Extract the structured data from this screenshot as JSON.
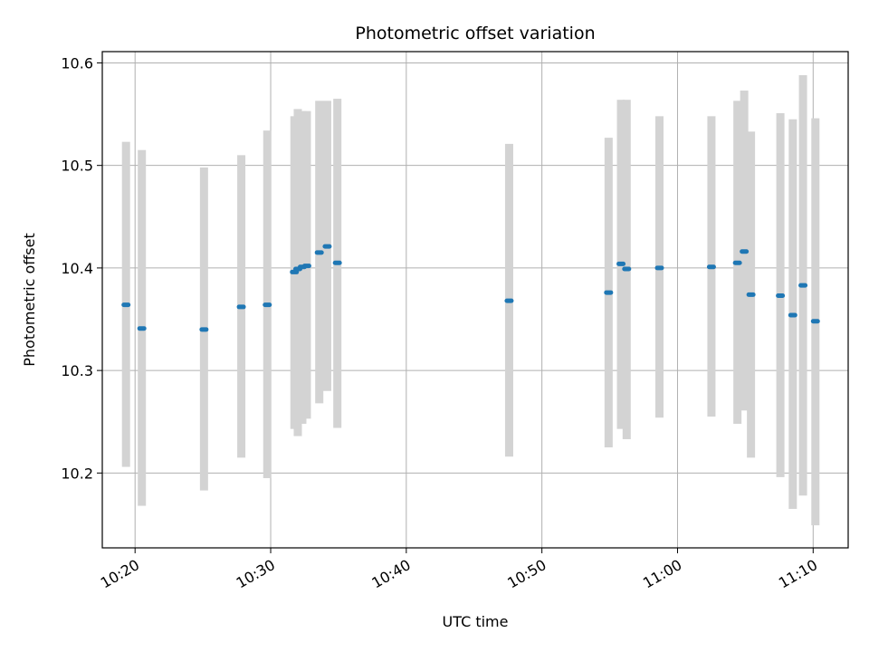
{
  "chart_data": {
    "type": "scatter",
    "title": "Photometric offset variation",
    "xlabel": "UTC time",
    "ylabel": "Photometric offset",
    "grid": true,
    "xlim": [
      "10:17:35",
      "11:12:35"
    ],
    "ylim": [
      10.127,
      10.611
    ],
    "x_ticks": [
      "10:20",
      "10:30",
      "10:40",
      "10:50",
      "11:00",
      "11:10"
    ],
    "y_ticks": [
      "10.2",
      "10.3",
      "10.4",
      "10.5",
      "10.6"
    ],
    "error_bar_color": "#d3d3d3",
    "point_color": "#1f77b4",
    "series": [
      {
        "points": [
          {
            "x": "10:19:20",
            "y": 10.364,
            "ylow": 10.206,
            "yhigh": 10.523
          },
          {
            "x": "10:20:30",
            "y": 10.341,
            "ylow": 10.168,
            "yhigh": 10.515
          },
          {
            "x": "10:25:05",
            "y": 10.34,
            "ylow": 10.183,
            "yhigh": 10.498
          },
          {
            "x": "10:27:50",
            "y": 10.362,
            "ylow": 10.215,
            "yhigh": 10.51
          },
          {
            "x": "10:29:45",
            "y": 10.364,
            "ylow": 10.195,
            "yhigh": 10.534
          },
          {
            "x": "10:31:45",
            "y": 10.396,
            "ylow": 10.243,
            "yhigh": 10.548
          },
          {
            "x": "10:32:00",
            "y": 10.399,
            "ylow": 10.236,
            "yhigh": 10.555
          },
          {
            "x": "10:32:20",
            "y": 10.401,
            "ylow": 10.248,
            "yhigh": 10.553
          },
          {
            "x": "10:32:40",
            "y": 10.402,
            "ylow": 10.253,
            "yhigh": 10.553
          },
          {
            "x": "10:33:35",
            "y": 10.415,
            "ylow": 10.268,
            "yhigh": 10.563
          },
          {
            "x": "10:34:10",
            "y": 10.421,
            "ylow": 10.28,
            "yhigh": 10.563
          },
          {
            "x": "10:34:55",
            "y": 10.405,
            "ylow": 10.244,
            "yhigh": 10.565
          },
          {
            "x": "10:47:35",
            "y": 10.368,
            "ylow": 10.216,
            "yhigh": 10.521
          },
          {
            "x": "10:54:55",
            "y": 10.376,
            "ylow": 10.225,
            "yhigh": 10.527
          },
          {
            "x": "10:55:50",
            "y": 10.404,
            "ylow": 10.243,
            "yhigh": 10.564
          },
          {
            "x": "10:56:15",
            "y": 10.399,
            "ylow": 10.233,
            "yhigh": 10.564
          },
          {
            "x": "10:58:40",
            "y": 10.4,
            "ylow": 10.254,
            "yhigh": 10.548
          },
          {
            "x": "11:02:30",
            "y": 10.401,
            "ylow": 10.255,
            "yhigh": 10.548
          },
          {
            "x": "11:04:25",
            "y": 10.405,
            "ylow": 10.248,
            "yhigh": 10.563
          },
          {
            "x": "11:04:55",
            "y": 10.416,
            "ylow": 10.261,
            "yhigh": 10.573
          },
          {
            "x": "11:05:25",
            "y": 10.374,
            "ylow": 10.215,
            "yhigh": 10.533
          },
          {
            "x": "11:07:35",
            "y": 10.373,
            "ylow": 10.196,
            "yhigh": 10.551
          },
          {
            "x": "11:08:30",
            "y": 10.354,
            "ylow": 10.165,
            "yhigh": 10.545
          },
          {
            "x": "11:09:15",
            "y": 10.383,
            "ylow": 10.178,
            "yhigh": 10.588
          },
          {
            "x": "11:10:10",
            "y": 10.348,
            "ylow": 10.149,
            "yhigh": 10.546
          }
        ]
      }
    ]
  }
}
